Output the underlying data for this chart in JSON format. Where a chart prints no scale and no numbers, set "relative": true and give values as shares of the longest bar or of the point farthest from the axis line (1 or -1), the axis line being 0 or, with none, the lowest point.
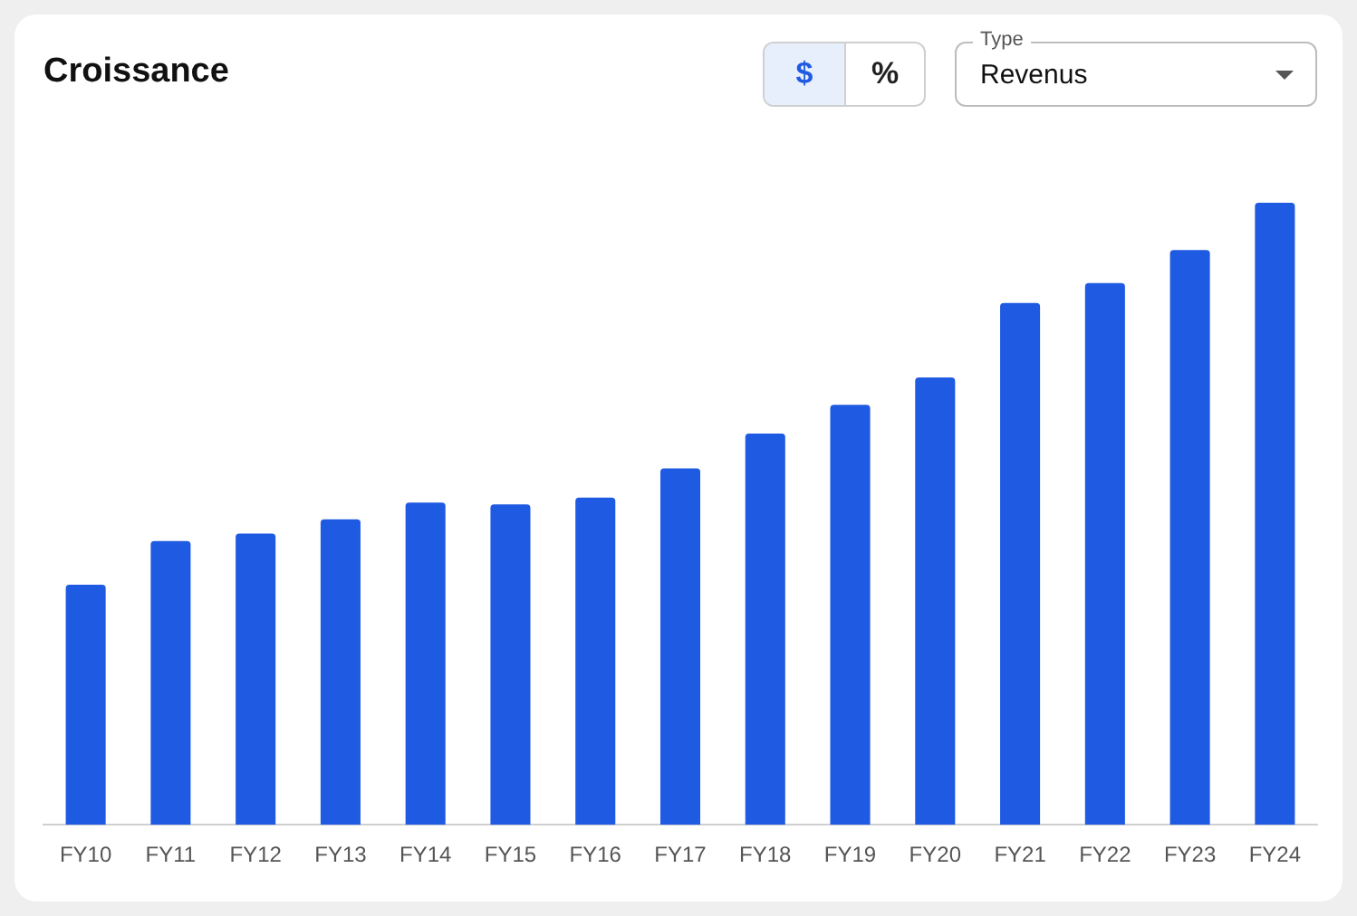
{
  "chart_data": {
    "type": "bar",
    "title": "Croissance",
    "relative": true,
    "color": "#1f5ae2",
    "grid": false,
    "legend": false,
    "categories": [
      "FY10",
      "FY11",
      "FY12",
      "FY13",
      "FY14",
      "FY15",
      "FY16",
      "FY17",
      "FY18",
      "FY19",
      "FY20",
      "FY21",
      "FY22",
      "FY23",
      "FY24"
    ],
    "values": [
      0.386,
      0.456,
      0.468,
      0.491,
      0.518,
      0.515,
      0.526,
      0.573,
      0.629,
      0.675,
      0.719,
      0.839,
      0.871,
      0.924,
      1
    ],
    "annotations": [
      "$",
      "%",
      "Type",
      "Revenus"
    ]
  }
}
